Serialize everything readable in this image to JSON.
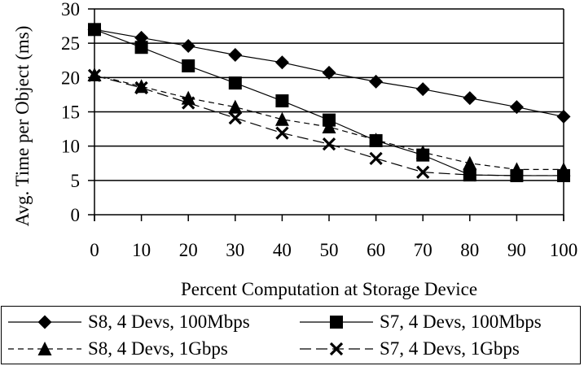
{
  "chart_data": {
    "type": "line",
    "title": "",
    "xlabel": "Percent Computation at Storage Device",
    "ylabel": "Avg. Time per Object (ms)",
    "x": [
      0,
      10,
      20,
      30,
      40,
      50,
      60,
      70,
      80,
      90,
      100
    ],
    "xticks": [
      "0",
      "10",
      "20",
      "30",
      "40",
      "50",
      "60",
      "70",
      "80",
      "90",
      "100"
    ],
    "yticks": [
      "0",
      "5",
      "10",
      "15",
      "20",
      "25",
      "30"
    ],
    "xlim": [
      0,
      100
    ],
    "ylim": [
      0,
      30
    ],
    "grid": "horizontal",
    "legend_position": "bottom",
    "series": [
      {
        "name": "S8, 4 Devs, 100Mbps",
        "marker": "diamond",
        "line": "solid",
        "values": [
          27.0,
          25.8,
          24.6,
          23.3,
          22.2,
          20.7,
          19.4,
          18.3,
          17.0,
          15.7,
          14.3
        ]
      },
      {
        "name": "S7, 4 Devs, 100Mbps",
        "marker": "square",
        "line": "solid",
        "values": [
          27.0,
          24.4,
          21.7,
          19.2,
          16.6,
          13.8,
          10.8,
          8.7,
          5.8,
          5.7,
          5.7
        ]
      },
      {
        "name": "S8, 4 Devs, 1Gbps",
        "marker": "triangle",
        "line": "dashed",
        "values": [
          20.4,
          18.7,
          17.0,
          15.7,
          13.9,
          12.8,
          10.9,
          9.1,
          7.5,
          6.6,
          6.6
        ]
      },
      {
        "name": "S7, 4 Devs, 1Gbps",
        "marker": "x",
        "line": "long-dash",
        "values": [
          20.3,
          18.5,
          16.3,
          14.1,
          11.9,
          10.3,
          8.2,
          6.2,
          5.8,
          5.7,
          5.7
        ]
      }
    ]
  },
  "colors": {
    "ink": "#000000",
    "background": "#ffffff"
  }
}
